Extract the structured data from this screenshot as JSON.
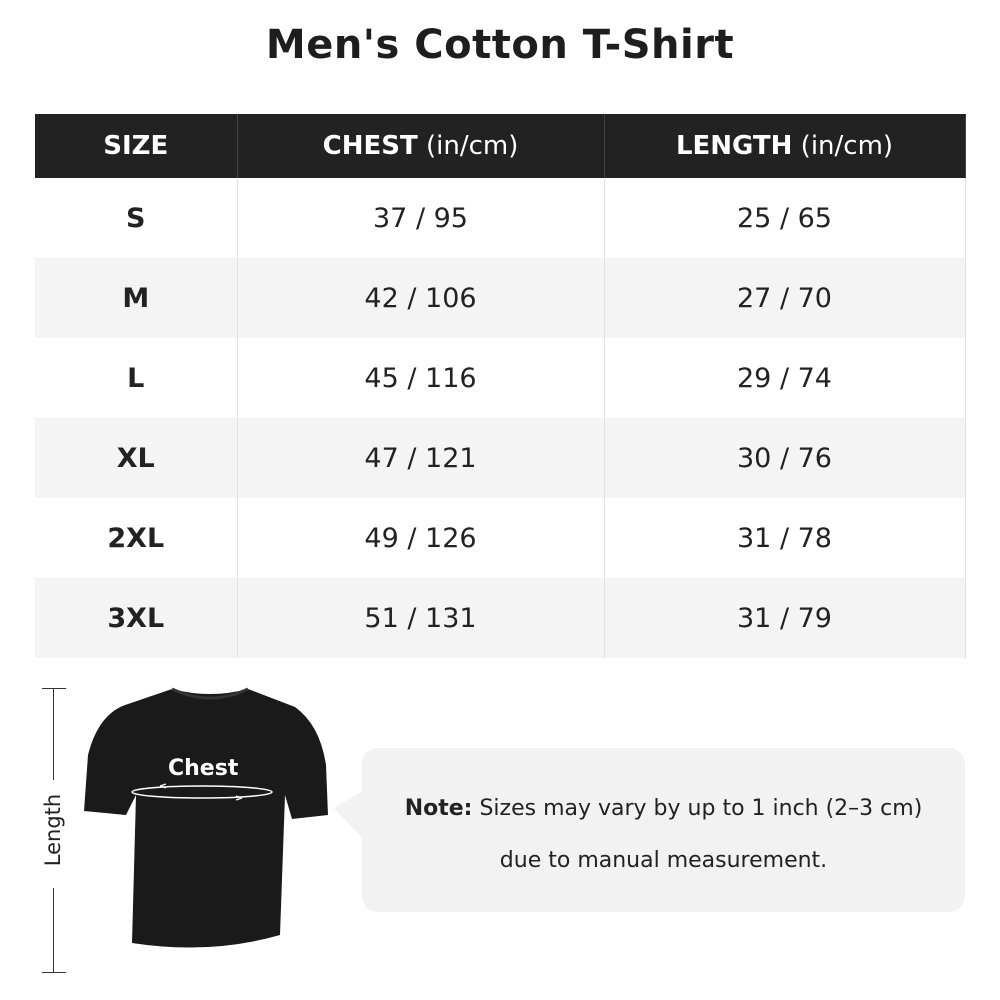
{
  "title": "Men's Cotton T-Shirt",
  "table": {
    "headers": [
      {
        "main": "SIZE",
        "unit": ""
      },
      {
        "main": "CHEST",
        "unit": " (in/cm)"
      },
      {
        "main": "LENGTH",
        "unit": " (in/cm)"
      }
    ],
    "rows": [
      {
        "size": "S",
        "chest": "37 / 95",
        "length": "25 / 65"
      },
      {
        "size": "M",
        "chest": "42 / 106",
        "length": "27 / 70"
      },
      {
        "size": "L",
        "chest": "45 / 116",
        "length": "29 / 74"
      },
      {
        "size": "XL",
        "chest": "47 / 121",
        "length": "30 / 76"
      },
      {
        "size": "2XL",
        "chest": "49 / 126",
        "length": "31 / 78"
      },
      {
        "size": "3XL",
        "chest": "51 / 131",
        "length": "31 / 79"
      }
    ]
  },
  "diagram": {
    "chest_label": "Chest",
    "length_label": "Length",
    "shirt_color": "#1a1a1a"
  },
  "note": {
    "label": "Note:",
    "line1": " Sizes may vary by up to 1 inch (2–3 cm)",
    "line2": "due to manual measurement."
  }
}
